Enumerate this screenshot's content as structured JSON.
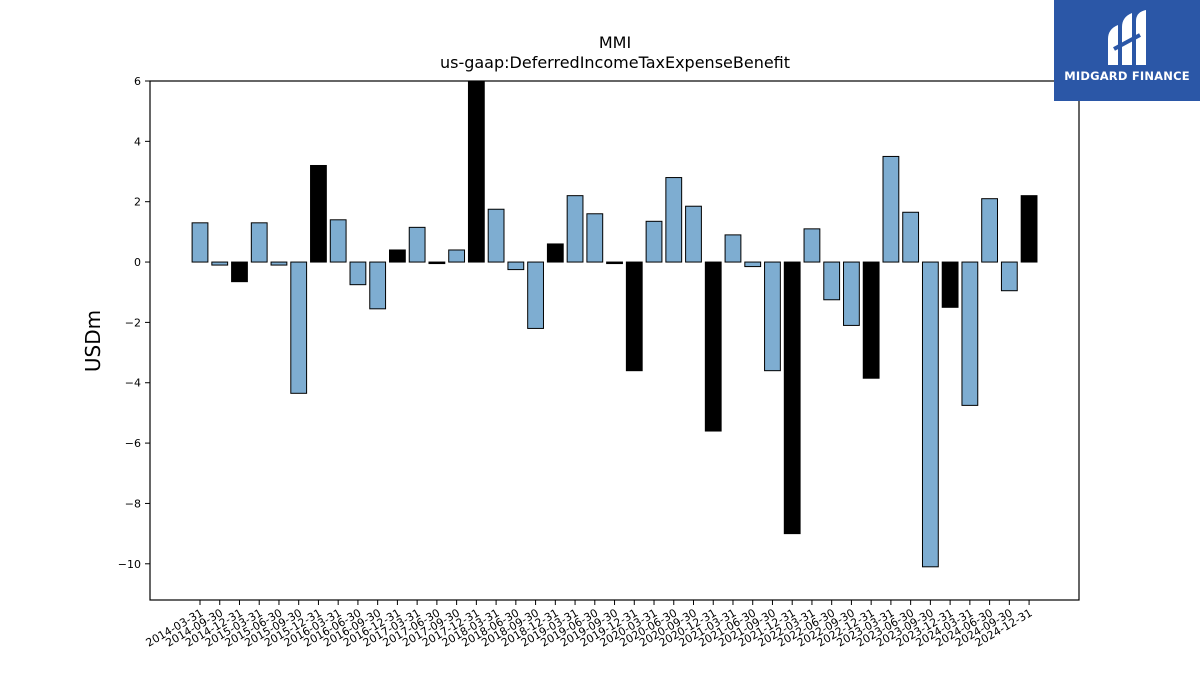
{
  "chart_data": {
    "type": "bar",
    "title": "MMI",
    "subtitle": "us-gaap:DeferredIncomeTaxExpenseBenefit",
    "xlabel": "",
    "ylabel": "USDm",
    "ylim": [
      -11.2,
      6.0
    ],
    "yticks": [
      6,
      4,
      2,
      0,
      -2,
      -4,
      -6,
      -8,
      -10
    ],
    "ytick_labels": [
      "6",
      "4",
      "2",
      "0",
      "−2",
      "−4",
      "−6",
      "−8",
      "−10"
    ],
    "grid": false,
    "categories": [
      "2014-03-31",
      "2014-09-30",
      "2014-12-31",
      "2015-03-31",
      "2015-06-30",
      "2015-09-30",
      "2015-12-31",
      "2016-03-31",
      "2016-06-30",
      "2016-09-30",
      "2016-12-31",
      "2017-03-31",
      "2017-06-30",
      "2017-09-30",
      "2017-12-31",
      "2018-03-31",
      "2018-06-30",
      "2018-09-30",
      "2018-12-31",
      "2019-03-31",
      "2019-06-30",
      "2019-09-30",
      "2019-12-31",
      "2020-03-31",
      "2020-06-30",
      "2020-09-30",
      "2020-12-31",
      "2021-03-31",
      "2021-06-30",
      "2021-09-30",
      "2021-12-31",
      "2022-03-31",
      "2022-06-30",
      "2022-09-30",
      "2022-12-31",
      "2023-03-31",
      "2023-06-30",
      "2023-09-30",
      "2023-12-31",
      "2024-03-31",
      "2024-06-30",
      "2024-09-30",
      "2024-12-31"
    ],
    "values": [
      1.3,
      -0.1,
      -0.65,
      1.3,
      -0.1,
      -4.35,
      3.2,
      1.4,
      -0.75,
      -1.55,
      0.4,
      1.15,
      -0.05,
      0.4,
      6.0,
      1.75,
      -0.25,
      -2.2,
      0.6,
      2.2,
      1.6,
      -0.05,
      -3.6,
      1.35,
      2.8,
      1.85,
      -5.6,
      0.9,
      -0.15,
      -3.6,
      -9.0,
      1.1,
      -1.25,
      -2.1,
      -3.85,
      3.5,
      1.65,
      -10.1,
      -1.5,
      -4.75,
      2.1,
      -0.95,
      2.2
    ],
    "highlight": [
      false,
      false,
      true,
      false,
      false,
      false,
      true,
      false,
      false,
      false,
      true,
      false,
      true,
      false,
      true,
      false,
      false,
      false,
      true,
      false,
      false,
      true,
      true,
      false,
      false,
      false,
      true,
      false,
      false,
      false,
      true,
      false,
      false,
      false,
      true,
      false,
      false,
      false,
      true,
      false,
      false,
      false,
      true
    ],
    "colors": {
      "normal": "#7eadd1",
      "highlight": "#000000",
      "edge": "#000000"
    }
  },
  "logo": {
    "text": "MIDGARD FINANCE",
    "background": "#2b57a7"
  }
}
